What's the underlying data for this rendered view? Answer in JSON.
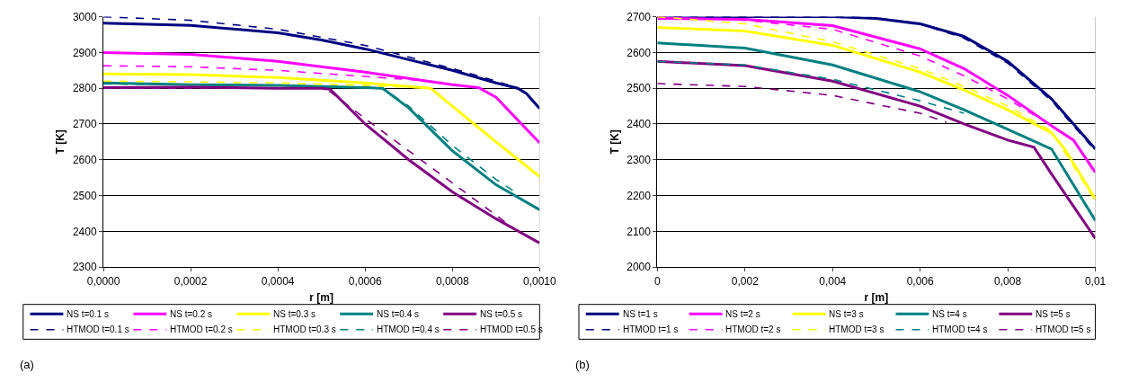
{
  "chart_data": [
    {
      "type": "line",
      "xlabel": "r [m]",
      "ylabel": "T [K]",
      "annotations": [
        "(a)"
      ],
      "grid": "y",
      "legend": "bottom",
      "xlim": [
        0,
        0.001
      ],
      "xticks": [
        {
          "value": 0,
          "label": "0,0000"
        },
        {
          "value": 0.0002,
          "label": "0,0002"
        },
        {
          "value": 0.0004,
          "label": "0,0004"
        },
        {
          "value": 0.0006,
          "label": "0,0006"
        },
        {
          "value": 0.0008,
          "label": "0,0008"
        },
        {
          "value": 0.001,
          "label": "0,0010"
        }
      ],
      "ylim": [
        2300,
        3000
      ],
      "yticks": [
        2300,
        2400,
        2500,
        2600,
        2700,
        2800,
        2900,
        3000
      ],
      "series": [
        {
          "name": "NS t=0.1 s",
          "color": "#000080",
          "line_style": "solid",
          "x": [
            0,
            0.0002,
            0.0004,
            0.0005,
            0.0006,
            0.0007,
            0.0008,
            0.0009,
            0.00095,
            0.00097,
            0.001
          ],
          "values": [
            2982,
            2976,
            2955,
            2935,
            2910,
            2880,
            2850,
            2815,
            2800,
            2785,
            2743
          ]
        },
        {
          "name": "NS t=0.2 s",
          "color": "#ff00ff",
          "line_style": "solid",
          "x": [
            0,
            0.0002,
            0.0004,
            0.0006,
            0.0008,
            0.00086,
            0.0009,
            0.001
          ],
          "values": [
            2900,
            2895,
            2875,
            2845,
            2810,
            2802,
            2775,
            2647
          ]
        },
        {
          "name": "NS t=0.3 s",
          "color": "#ffff00",
          "line_style": "solid",
          "x": [
            0,
            0.0002,
            0.0004,
            0.0006,
            0.00075,
            0.0008,
            0.0009,
            0.001
          ],
          "values": [
            2840,
            2838,
            2830,
            2815,
            2800,
            2750,
            2650,
            2553
          ]
        },
        {
          "name": "NS t=0.4 s",
          "color": "#008080",
          "line_style": "solid",
          "x": [
            0,
            0.0002,
            0.0004,
            0.0006,
            0.00064,
            0.0007,
            0.0008,
            0.0009,
            0.001
          ],
          "values": [
            2815,
            2810,
            2808,
            2802,
            2800,
            2745,
            2625,
            2530,
            2460
          ]
        },
        {
          "name": "NS t=0.5 s",
          "color": "#800080",
          "line_style": "solid",
          "x": [
            0,
            0.0002,
            0.0004,
            0.0005,
            0.00052,
            0.0006,
            0.0007,
            0.0008,
            0.0009,
            0.001
          ],
          "values": [
            2802,
            2803,
            2800,
            2800,
            2797,
            2700,
            2600,
            2510,
            2435,
            2367
          ]
        },
        {
          "name": "HTMOD t=0.1 s",
          "color": "#000080",
          "line_style": "dashed",
          "x": [
            0,
            0.0002,
            0.0004,
            0.0006,
            0.0008,
            0.0009,
            0.00095
          ],
          "values": [
            3000,
            2990,
            2965,
            2920,
            2855,
            2820,
            2800
          ]
        },
        {
          "name": "HTMOD t=0.2 s",
          "color": "#ff00ff",
          "line_style": "dashed",
          "x": [
            0,
            0.0002,
            0.0004,
            0.0006,
            0.00075
          ],
          "values": [
            2863,
            2860,
            2850,
            2833,
            2820
          ]
        },
        {
          "name": "HTMOD t=0.3 s",
          "color": "#ffff00",
          "line_style": "dashed",
          "x": [
            0,
            0.0002,
            0.0004,
            0.0006,
            0.00075,
            0.0008,
            0.0009,
            0.00095
          ],
          "values": [
            2820,
            2818,
            2815,
            2808,
            2800,
            2750,
            2650,
            2600
          ]
        },
        {
          "name": "HTMOD t=0.4 s",
          "color": "#008080",
          "line_style": "dashed",
          "x": [
            0,
            0.0002,
            0.0004,
            0.0006,
            0.00064,
            0.0007,
            0.0008,
            0.0009,
            0.00095
          ],
          "values": [
            2812,
            2810,
            2808,
            2803,
            2800,
            2750,
            2640,
            2545,
            2505
          ]
        },
        {
          "name": "HTMOD t=0.5 s",
          "color": "#800080",
          "line_style": "dashed",
          "x": [
            0,
            0.0002,
            0.0004,
            0.0005,
            0.00052,
            0.0006,
            0.0007,
            0.0008,
            0.0009,
            0.00095
          ],
          "values": [
            2800,
            2800,
            2800,
            2800,
            2790,
            2715,
            2625,
            2535,
            2445,
            2400
          ]
        }
      ]
    },
    {
      "type": "line",
      "xlabel": "r [m]",
      "ylabel": "T [K]",
      "annotations": [
        "(b)"
      ],
      "grid": "y",
      "legend": "bottom",
      "xlim": [
        0,
        0.01
      ],
      "xticks": [
        0,
        {
          "value": 0.002,
          "label": "0,002"
        },
        {
          "value": 0.004,
          "label": "0,004"
        },
        {
          "value": 0.006,
          "label": "0,006"
        },
        {
          "value": 0.008,
          "label": "0,008"
        },
        {
          "value": 0.01,
          "label": "0,01"
        }
      ],
      "ylim": [
        2000,
        2700
      ],
      "yticks": [
        2000,
        2100,
        2200,
        2300,
        2400,
        2500,
        2600,
        2700
      ],
      "series": [
        {
          "name": "NS t=1 s",
          "color": "#000080",
          "line_style": "solid",
          "x": [
            0,
            0.002,
            0.004,
            0.005,
            0.006,
            0.007,
            0.008,
            0.009,
            0.01
          ],
          "values": [
            2700,
            2700,
            2700,
            2695,
            2680,
            2645,
            2575,
            2470,
            2330
          ]
        },
        {
          "name": "NS t=2 s",
          "color": "#ff00ff",
          "line_style": "solid",
          "x": [
            0,
            0.002,
            0.004,
            0.006,
            0.007,
            0.008,
            0.009,
            0.0095,
            0.01
          ],
          "values": [
            2695,
            2693,
            2675,
            2610,
            2555,
            2480,
            2395,
            2355,
            2265
          ]
        },
        {
          "name": "NS t=3 s",
          "color": "#ffff00",
          "line_style": "solid",
          "x": [
            0,
            0.002,
            0.004,
            0.006,
            0.007,
            0.008,
            0.009,
            0.0093,
            0.01
          ],
          "values": [
            2670,
            2660,
            2620,
            2545,
            2495,
            2440,
            2375,
            2330,
            2190
          ]
        },
        {
          "name": "NS t=4 s",
          "color": "#008080",
          "line_style": "solid",
          "x": [
            0,
            0.002,
            0.004,
            0.006,
            0.007,
            0.008,
            0.009,
            0.01
          ],
          "values": [
            2627,
            2612,
            2565,
            2490,
            2440,
            2385,
            2330,
            2130
          ]
        },
        {
          "name": "NS t=5 s",
          "color": "#800080",
          "line_style": "solid",
          "x": [
            0,
            0.002,
            0.004,
            0.006,
            0.007,
            0.008,
            0.0086,
            0.009,
            0.01
          ],
          "values": [
            2575,
            2563,
            2520,
            2450,
            2400,
            2355,
            2335,
            2260,
            2080
          ]
        },
        {
          "name": "HTMOD t=1 s",
          "color": "#000080",
          "line_style": "dashed",
          "x": [
            0,
            0.002,
            0.004,
            0.005,
            0.006,
            0.007,
            0.008,
            0.009,
            0.01
          ],
          "values": [
            2700,
            2700,
            2700,
            2697,
            2680,
            2640,
            2570,
            2465,
            2325
          ]
        },
        {
          "name": "HTMOD t=2 s",
          "color": "#ff00ff",
          "line_style": "dashed",
          "x": [
            0,
            0.002,
            0.004,
            0.006,
            0.007,
            0.008,
            0.009,
            0.0095,
            0.01
          ],
          "values": [
            2700,
            2690,
            2665,
            2590,
            2535,
            2470,
            2395,
            2355,
            2260
          ]
        },
        {
          "name": "HTMOD t=3 s",
          "color": "#ffff00",
          "line_style": "dashed",
          "x": [
            0,
            0.002,
            0.004,
            0.006,
            0.007,
            0.008,
            0.009,
            0.01
          ],
          "values": [
            2700,
            2680,
            2630,
            2555,
            2505,
            2450,
            2380,
            2185
          ]
        },
        {
          "name": "HTMOD t=4 s",
          "color": "#008080",
          "line_style": "dashed",
          "x": [
            0,
            0.002,
            0.004,
            0.006,
            0.007
          ],
          "values": [
            2575,
            2565,
            2525,
            2465,
            2430
          ]
        },
        {
          "name": "HTMOD t=5 s",
          "color": "#800080",
          "line_style": "dashed",
          "x": [
            0,
            0.002,
            0.004,
            0.006,
            0.0066
          ],
          "values": [
            2513,
            2505,
            2480,
            2430,
            2405
          ]
        }
      ]
    }
  ]
}
